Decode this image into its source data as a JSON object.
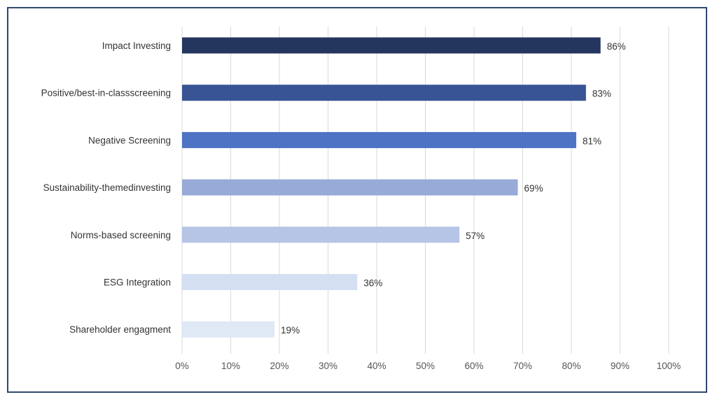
{
  "chart_data": {
    "type": "bar",
    "orientation": "horizontal",
    "categories": [
      "Impact Investing",
      "Positive/best-in-classscreening",
      "Negative Screening",
      "Sustainability-themedinvesting",
      "Norms-based screening",
      "ESG Integration",
      "Shareholder engagment"
    ],
    "values": [
      86,
      83,
      81,
      69,
      57,
      36,
      19
    ],
    "data_labels": [
      "86%",
      "83%",
      "81%",
      "69%",
      "57%",
      "36%",
      "19%"
    ],
    "bar_colors": [
      "#24355e",
      "#385495",
      "#4e72c4",
      "#98aad8",
      "#b6c4e5",
      "#d5dff2",
      "#dfe8f5"
    ],
    "xlim": [
      0,
      100
    ],
    "x_ticks": [
      0,
      10,
      20,
      30,
      40,
      50,
      60,
      70,
      80,
      90,
      100
    ],
    "x_tick_labels": [
      "0%",
      "10%",
      "20%",
      "30%",
      "40%",
      "50%",
      "60%",
      "70%",
      "80%",
      "90%",
      "100%"
    ],
    "grid": "vertical",
    "grid_color": "#d9d9d9",
    "frame_color": "#2e4a6b",
    "title": "",
    "xlabel": "",
    "ylabel": ""
  }
}
